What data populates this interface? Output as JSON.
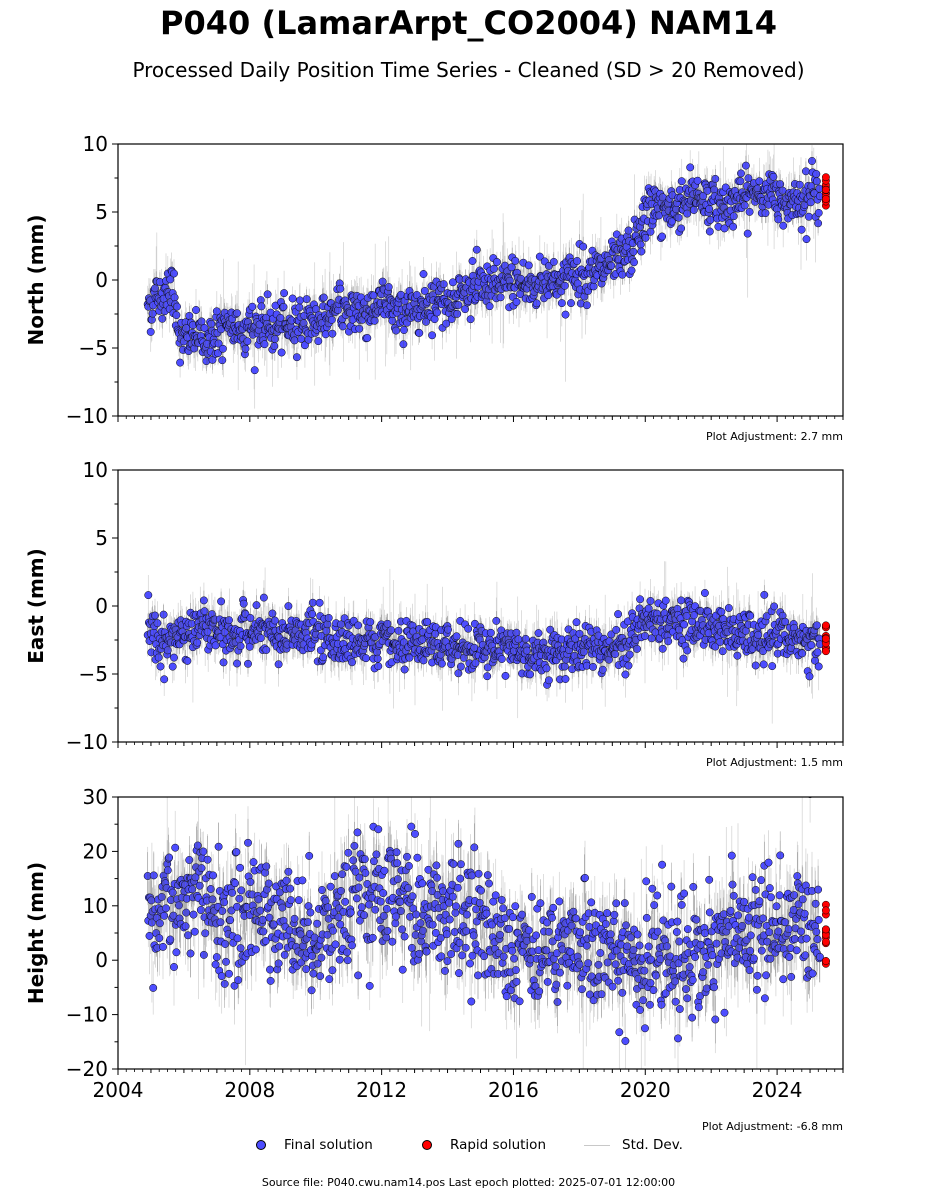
{
  "title": "P040 (LamarArpt_CO2004) NAM14",
  "subtitle": "Processed Daily Position Time Series - Cleaned (SD > 20 Removed)",
  "footer": "Source file: P040.cwu.nam14.pos  Last epoch plotted: 2025-07-01 12:00:00",
  "legend": {
    "final": "Final solution",
    "rapid": "Rapid solution",
    "std": "Std. Dev."
  },
  "colors": {
    "final": "#4d4dff",
    "rapid": "#ff0000",
    "std": "#c8c8c8",
    "marker_edge": "#000000"
  },
  "chart_data": [
    {
      "type": "scatter",
      "ylabel": "North (mm)",
      "ylim": [
        -10,
        10
      ],
      "yticks": [
        -10,
        -5,
        0,
        5,
        10
      ],
      "xlim": [
        2004,
        2026
      ],
      "xticks": [],
      "adjustment": "Plot Adjustment: 2.7 mm",
      "series": [
        {
          "name": "Final solution",
          "x": [
            2004.9,
            2005.0,
            2005.2,
            2005.4,
            2005.5,
            2005.6,
            2005.7,
            2005.9,
            2006.0,
            2006.3,
            2006.6,
            2007.0,
            2007.5,
            2008.0,
            2008.5,
            2009.0,
            2009.5,
            2010.0,
            2010.5,
            2011.0,
            2011.5,
            2012.0,
            2012.5,
            2013.0,
            2013.5,
            2014.0,
            2014.5,
            2015.0,
            2015.5,
            2016.0,
            2016.5,
            2017.0,
            2017.5,
            2018.0,
            2018.5,
            2019.0,
            2019.3,
            2019.5,
            2019.7,
            2019.9,
            2020.2,
            2020.5,
            2021.0,
            2021.5,
            2022.0,
            2022.5,
            2023.0,
            2023.5,
            2024.0,
            2024.5,
            2025.0,
            2025.3
          ],
          "y": [
            -1.5,
            -2.0,
            -1.0,
            -1.5,
            0.0,
            -0.5,
            -1.0,
            -4.5,
            -4.5,
            -4.0,
            -4.5,
            -4.0,
            -3.5,
            -3.5,
            -3.5,
            -3.5,
            -3.0,
            -3.0,
            -2.5,
            -2.0,
            -2.5,
            -1.5,
            -2.5,
            -2.0,
            -1.5,
            -1.5,
            -1.0,
            -0.5,
            -0.5,
            0.0,
            -0.5,
            0.0,
            0.0,
            0.5,
            0.5,
            1.0,
            1.5,
            2.0,
            2.5,
            4.0,
            5.5,
            5.0,
            5.5,
            6.5,
            5.5,
            5.5,
            6.0,
            6.5,
            6.0,
            6.0,
            6.5,
            6.0
          ]
        },
        {
          "name": "Rapid solution",
          "x": [
            2025.48
          ],
          "y": [
            6.5
          ]
        }
      ]
    },
    {
      "type": "scatter",
      "ylabel": "East (mm)",
      "ylim": [
        -10,
        10
      ],
      "yticks": [
        -10,
        -5,
        0,
        5,
        10
      ],
      "xlim": [
        2004,
        2026
      ],
      "xticks": [],
      "adjustment": "Plot Adjustment: 1.5 mm",
      "series": [
        {
          "name": "Final solution",
          "x": [
            2004.9,
            2005.0,
            2005.3,
            2005.5,
            2005.8,
            2006.0,
            2006.5,
            2007.0,
            2007.5,
            2008.0,
            2008.5,
            2009.0,
            2009.5,
            2010.0,
            2010.5,
            2011.0,
            2011.5,
            2012.0,
            2012.5,
            2013.0,
            2013.5,
            2014.0,
            2014.5,
            2015.0,
            2015.5,
            2016.0,
            2016.5,
            2017.0,
            2017.5,
            2018.0,
            2018.5,
            2019.0,
            2019.5,
            2020.0,
            2020.5,
            2021.0,
            2021.5,
            2022.0,
            2022.5,
            2023.0,
            2023.5,
            2024.0,
            2024.5,
            2025.0,
            2025.3
          ],
          "y": [
            -1.0,
            -2.0,
            -3.0,
            -2.5,
            -2.5,
            -2.0,
            -1.5,
            -2.0,
            -2.0,
            -2.0,
            -2.0,
            -2.5,
            -2.0,
            -2.0,
            -2.5,
            -2.5,
            -2.5,
            -2.5,
            -3.0,
            -3.0,
            -3.0,
            -3.0,
            -3.0,
            -3.0,
            -3.0,
            -3.0,
            -3.5,
            -3.5,
            -3.5,
            -3.0,
            -3.0,
            -3.0,
            -2.5,
            -1.0,
            -1.0,
            -1.0,
            -1.5,
            -1.5,
            -2.0,
            -2.0,
            -2.5,
            -2.0,
            -2.5,
            -2.5,
            -2.5
          ]
        },
        {
          "name": "Rapid solution",
          "x": [
            2025.48
          ],
          "y": [
            -2.5
          ]
        }
      ]
    },
    {
      "type": "scatter",
      "ylabel": "Height (mm)",
      "ylim": [
        -20,
        30
      ],
      "yticks": [
        -20,
        -10,
        0,
        10,
        20,
        30
      ],
      "xlim": [
        2004,
        2026
      ],
      "xticks": [
        2004,
        2008,
        2012,
        2016,
        2020,
        2024
      ],
      "adjustment": "Plot Adjustment: -6.8 mm",
      "series": [
        {
          "name": "Final solution",
          "x": [
            2004.9,
            2005.0,
            2005.5,
            2006.0,
            2006.5,
            2007.0,
            2007.5,
            2008.0,
            2008.5,
            2009.0,
            2009.5,
            2010.0,
            2010.5,
            2011.0,
            2011.5,
            2012.0,
            2012.5,
            2013.0,
            2013.5,
            2014.0,
            2014.5,
            2015.0,
            2015.5,
            2016.0,
            2016.5,
            2017.0,
            2017.5,
            2018.0,
            2018.5,
            2019.0,
            2019.5,
            2020.0,
            2020.5,
            2021.0,
            2021.5,
            2022.0,
            2022.5,
            2023.0,
            2023.5,
            2024.0,
            2024.5,
            2025.0,
            2025.3
          ],
          "y": [
            8,
            5,
            12,
            10,
            12,
            8,
            6,
            10,
            8,
            9,
            5,
            5,
            8,
            8,
            12,
            10,
            12,
            10,
            9,
            8,
            9,
            7,
            5,
            4,
            3,
            2,
            2,
            3,
            2,
            1,
            0,
            -2,
            0,
            1,
            1,
            2,
            4,
            5,
            6,
            5,
            6,
            7,
            6
          ]
        },
        {
          "name": "Rapid solution",
          "x": [
            2025.48
          ],
          "y": [
            5
          ]
        }
      ]
    }
  ]
}
